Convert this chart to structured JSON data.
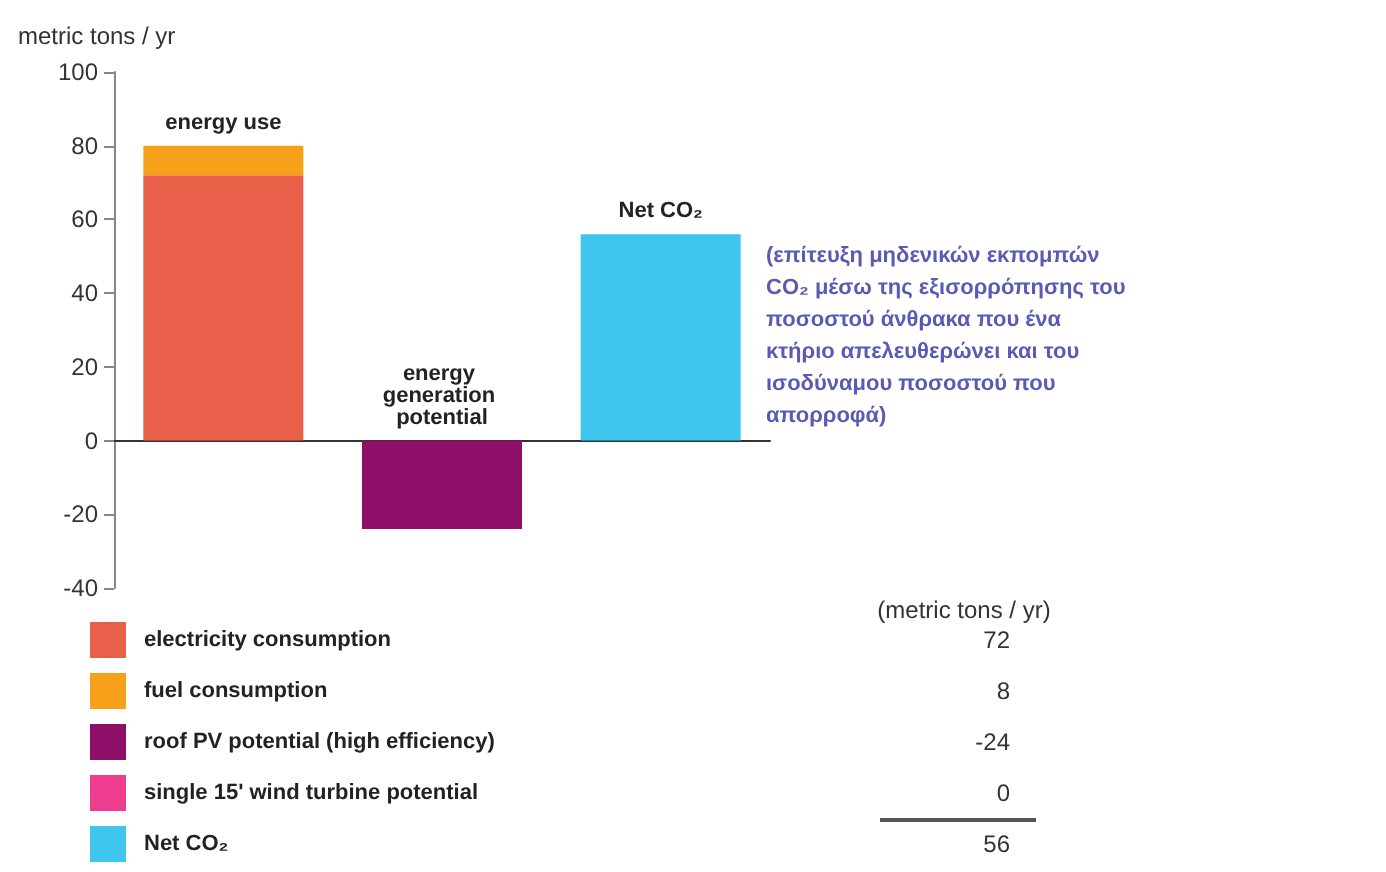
{
  "chart_data": {
    "type": "bar",
    "stacked": true,
    "ylabel": "metric tons / yr",
    "categories": [
      "energy use",
      "energy generation potential",
      "Net CO₂"
    ],
    "series": [
      {
        "name": "electricity consumption",
        "color": "#e8604a",
        "values": [
          72,
          null,
          null
        ]
      },
      {
        "name": "fuel consumption",
        "color": "#f7a11a",
        "values": [
          8,
          null,
          null
        ]
      },
      {
        "name": "roof PV potential (high efficiency)",
        "color": "#8e1068",
        "values": [
          null,
          -24,
          null
        ]
      },
      {
        "name": "single 15' wind turbine potential",
        "color": "#ee3d8f",
        "values": [
          null,
          0,
          null
        ]
      },
      {
        "name": "Net CO₂",
        "color": "#3ec6ee",
        "values": [
          null,
          null,
          56
        ]
      }
    ],
    "ylim": [
      -40,
      100
    ],
    "yticks": [
      -40,
      -20,
      0,
      20,
      40,
      60,
      80,
      100
    ],
    "legend": "bottom left",
    "tick_labels": "y",
    "annotations": [
      "(επίτευξη μηδενικών εκπομπών CO₂ μέσω της εξισορρόπησης του ποσοστού άνθρακα που ένα κτήριο απελευθερώνει και του ισοδύναμου ποσοστού που απορροφά)",
      "(metric tons / yr)",
      "72",
      "8",
      "-24",
      "0",
      "56"
    ]
  }
}
